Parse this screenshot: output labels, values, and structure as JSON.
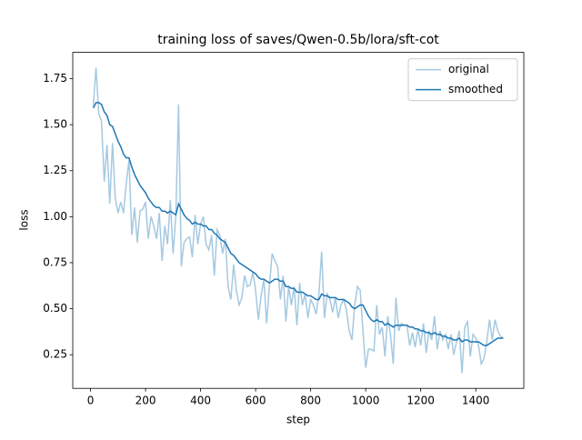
{
  "chart_data": {
    "type": "line",
    "title": "training loss of saves/Qwen-0.5b/lora/sft-cot",
    "xlabel": "step",
    "ylabel": "loss",
    "x": [
      10,
      20,
      30,
      40,
      50,
      60,
      70,
      80,
      90,
      100,
      110,
      120,
      130,
      140,
      150,
      160,
      170,
      180,
      190,
      200,
      210,
      220,
      230,
      240,
      250,
      260,
      270,
      280,
      290,
      300,
      310,
      320,
      330,
      340,
      350,
      360,
      370,
      380,
      390,
      400,
      410,
      420,
      430,
      440,
      450,
      460,
      470,
      480,
      490,
      500,
      510,
      520,
      530,
      540,
      550,
      560,
      570,
      580,
      590,
      600,
      610,
      620,
      630,
      640,
      650,
      660,
      670,
      680,
      690,
      700,
      710,
      720,
      730,
      740,
      750,
      760,
      770,
      780,
      790,
      800,
      810,
      820,
      830,
      840,
      850,
      860,
      870,
      880,
      890,
      900,
      910,
      920,
      930,
      940,
      950,
      960,
      970,
      980,
      990,
      1000,
      1010,
      1020,
      1030,
      1040,
      1050,
      1060,
      1070,
      1080,
      1090,
      1100,
      1110,
      1120,
      1130,
      1140,
      1150,
      1160,
      1170,
      1180,
      1190,
      1200,
      1210,
      1220,
      1230,
      1240,
      1250,
      1260,
      1270,
      1280,
      1290,
      1300,
      1310,
      1320,
      1330,
      1340,
      1350,
      1360,
      1370,
      1380,
      1390,
      1400,
      1410,
      1420,
      1430,
      1440,
      1450,
      1460,
      1470,
      1480,
      1490,
      1500
    ],
    "series": [
      {
        "name": "original",
        "color": "#a5c9e1",
        "values": [
          1.6,
          1.81,
          1.56,
          1.52,
          1.19,
          1.39,
          1.07,
          1.4,
          1.1,
          1.02,
          1.08,
          1.02,
          1.18,
          1.31,
          0.9,
          1.05,
          0.86,
          1.03,
          1.04,
          1.08,
          0.88,
          1.0,
          0.95,
          0.88,
          1.02,
          0.76,
          0.95,
          0.85,
          1.09,
          0.8,
          1.0,
          1.61,
          0.73,
          0.86,
          0.88,
          0.89,
          0.78,
          1.01,
          0.85,
          0.96,
          1.0,
          0.85,
          0.82,
          0.9,
          0.68,
          0.93,
          0.9,
          0.8,
          0.88,
          0.62,
          0.55,
          0.74,
          0.6,
          0.52,
          0.56,
          0.68,
          0.62,
          0.63,
          0.7,
          0.6,
          0.44,
          0.57,
          0.66,
          0.42,
          0.62,
          0.8,
          0.76,
          0.73,
          0.55,
          0.68,
          0.43,
          0.62,
          0.52,
          0.62,
          0.41,
          0.64,
          0.52,
          0.58,
          0.45,
          0.55,
          0.52,
          0.47,
          0.58,
          0.81,
          0.45,
          0.58,
          0.55,
          0.48,
          0.56,
          0.45,
          0.52,
          0.55,
          0.49,
          0.38,
          0.33,
          0.52,
          0.62,
          0.6,
          0.38,
          0.18,
          0.28,
          0.28,
          0.27,
          0.52,
          0.36,
          0.4,
          0.24,
          0.46,
          0.36,
          0.2,
          0.56,
          0.38,
          0.42,
          0.41,
          0.41,
          0.3,
          0.37,
          0.29,
          0.39,
          0.3,
          0.42,
          0.26,
          0.38,
          0.33,
          0.46,
          0.28,
          0.38,
          0.33,
          0.36,
          0.28,
          0.36,
          0.25,
          0.32,
          0.38,
          0.15,
          0.4,
          0.43,
          0.24,
          0.36,
          0.34,
          0.3,
          0.2,
          0.23,
          0.32,
          0.44,
          0.33,
          0.44,
          0.38,
          0.35,
          0.34
        ]
      },
      {
        "name": "smoothed",
        "color": "#1f77b4",
        "values": [
          1.59,
          1.62,
          1.62,
          1.61,
          1.57,
          1.55,
          1.5,
          1.49,
          1.45,
          1.41,
          1.38,
          1.34,
          1.32,
          1.32,
          1.27,
          1.23,
          1.2,
          1.17,
          1.15,
          1.13,
          1.1,
          1.08,
          1.06,
          1.05,
          1.05,
          1.03,
          1.03,
          1.02,
          1.03,
          1.02,
          1.01,
          1.07,
          1.04,
          1.01,
          0.99,
          0.98,
          0.96,
          0.97,
          0.96,
          0.96,
          0.95,
          0.95,
          0.93,
          0.93,
          0.91,
          0.9,
          0.88,
          0.87,
          0.86,
          0.83,
          0.8,
          0.79,
          0.77,
          0.75,
          0.74,
          0.73,
          0.72,
          0.71,
          0.7,
          0.69,
          0.67,
          0.66,
          0.66,
          0.65,
          0.64,
          0.65,
          0.66,
          0.66,
          0.65,
          0.65,
          0.62,
          0.62,
          0.61,
          0.61,
          0.59,
          0.59,
          0.59,
          0.58,
          0.57,
          0.57,
          0.56,
          0.55,
          0.55,
          0.58,
          0.57,
          0.57,
          0.56,
          0.56,
          0.56,
          0.55,
          0.55,
          0.55,
          0.54,
          0.53,
          0.51,
          0.5,
          0.51,
          0.52,
          0.52,
          0.49,
          0.46,
          0.44,
          0.43,
          0.44,
          0.43,
          0.43,
          0.41,
          0.42,
          0.41,
          0.4,
          0.41,
          0.41,
          0.41,
          0.41,
          0.41,
          0.4,
          0.4,
          0.39,
          0.39,
          0.38,
          0.38,
          0.37,
          0.37,
          0.36,
          0.37,
          0.36,
          0.36,
          0.35,
          0.35,
          0.34,
          0.34,
          0.33,
          0.33,
          0.34,
          0.32,
          0.33,
          0.33,
          0.32,
          0.32,
          0.32,
          0.32,
          0.31,
          0.3,
          0.3,
          0.31,
          0.32,
          0.33,
          0.34,
          0.34,
          0.34
        ]
      }
    ],
    "xlim": [
      -64.5,
      1574.5
    ],
    "xticks": [
      0,
      200,
      400,
      600,
      800,
      1000,
      1200,
      1400
    ],
    "ylim": [
      0.067,
      1.893
    ],
    "yticks": [
      0.25,
      {
        "value": 0.5,
        "label": "0.50"
      },
      0.75,
      {
        "value": 1.0,
        "label": "1.00"
      },
      1.25,
      {
        "value": 1.5,
        "label": "1.50"
      },
      1.75
    ],
    "legend": "upper right"
  }
}
